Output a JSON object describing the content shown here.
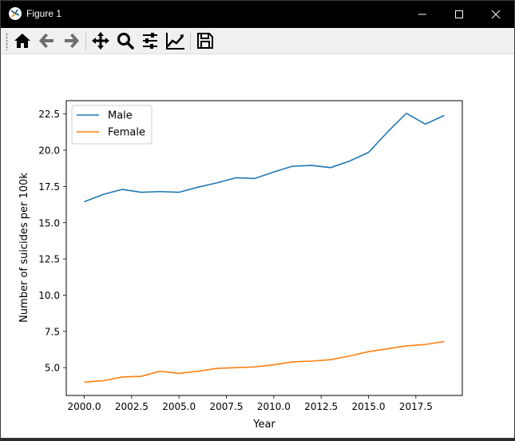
{
  "window": {
    "title": "Figure 1"
  },
  "toolbar": {
    "buttons": [
      {
        "name": "home-button",
        "icon": "home-icon"
      },
      {
        "name": "back-button",
        "icon": "arrow-left-icon"
      },
      {
        "name": "forward-button",
        "icon": "arrow-right-icon"
      },
      {
        "name": "pan-button",
        "icon": "move-icon"
      },
      {
        "name": "zoom-button",
        "icon": "search-icon"
      },
      {
        "name": "subplots-button",
        "icon": "sliders-icon"
      },
      {
        "name": "customize-button",
        "icon": "line-chart-icon"
      },
      {
        "name": "save-button",
        "icon": "save-icon"
      }
    ]
  },
  "chart_data": {
    "type": "line",
    "title": "",
    "xlabel": "Year",
    "ylabel": "Number of suicides per 100k",
    "x": [
      2000,
      2001,
      2002,
      2003,
      2004,
      2005,
      2006,
      2007,
      2008,
      2009,
      2010,
      2011,
      2012,
      2013,
      2014,
      2015,
      2016,
      2017,
      2018,
      2019
    ],
    "series": [
      {
        "name": "Male",
        "color": "#1f77b4",
        "values": [
          16.45,
          16.95,
          17.3,
          17.1,
          17.15,
          17.1,
          17.45,
          17.75,
          18.1,
          18.05,
          18.5,
          18.9,
          18.95,
          18.8,
          19.25,
          19.85,
          21.25,
          22.55,
          21.8,
          22.4
        ]
      },
      {
        "name": "Female",
        "color": "#ff7f0e",
        "values": [
          4.0,
          4.1,
          4.35,
          4.4,
          4.75,
          4.6,
          4.75,
          4.95,
          5.0,
          5.05,
          5.2,
          5.4,
          5.45,
          5.55,
          5.8,
          6.1,
          6.3,
          6.5,
          6.6,
          6.8
        ]
      }
    ],
    "xlim": [
      1999.05,
      2019.95
    ],
    "ylim": [
      3.08,
      23.42
    ],
    "xticks": [
      2000.0,
      2002.5,
      2005.0,
      2007.5,
      2010.0,
      2012.5,
      2015.0,
      2017.5
    ],
    "xtick_labels": [
      "2000.0",
      "2002.5",
      "2005.0",
      "2007.5",
      "2010.0",
      "2012.5",
      "2015.0",
      "2017.5"
    ],
    "yticks": [
      5.0,
      7.5,
      10.0,
      12.5,
      15.0,
      17.5,
      20.0,
      22.5
    ],
    "ytick_labels": [
      "5.0",
      "7.5",
      "10.0",
      "12.5",
      "15.0",
      "17.5",
      "20.0",
      "22.5"
    ],
    "legend": "upper-left",
    "grid": false
  }
}
